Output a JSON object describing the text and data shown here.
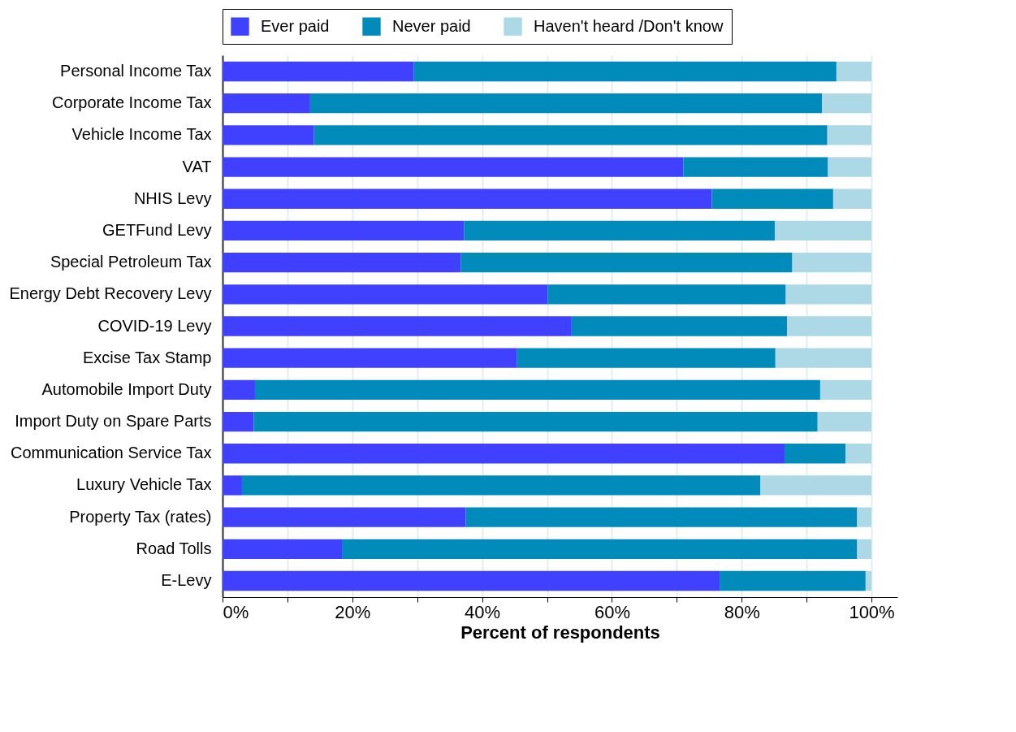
{
  "chart_data": {
    "type": "bar",
    "orientation": "horizontal",
    "stacked": true,
    "xlabel": "Percent of respondents",
    "categories": [
      "Personal Income Tax",
      "Corporate Income Tax",
      "Vehicle Income Tax",
      "VAT",
      "NHIS Levy",
      "GETFund Levy",
      "Special Petroleum Tax",
      "Energy Debt Recovery Levy",
      "COVID-19 Levy",
      "Excise Tax Stamp",
      "Automobile Import Duty",
      "Import Duty on Spare Parts",
      "Communication Service Tax",
      "Luxury Vehicle Tax",
      "Property Tax (rates)",
      "Road Tolls",
      "E-Levy"
    ],
    "series": [
      {
        "name": "Ever paid",
        "color": "#4040ff",
        "values": [
          29.5,
          13.5,
          14.1,
          71.0,
          75.4,
          37.2,
          36.7,
          50.1,
          53.8,
          45.4,
          5.0,
          4.8,
          86.6,
          3.0,
          37.5,
          18.4,
          76.6
        ]
      },
      {
        "name": "Never paid",
        "color": "#008bbb",
        "values": [
          65.1,
          78.9,
          79.1,
          22.3,
          18.7,
          47.9,
          51.1,
          36.7,
          33.2,
          39.8,
          87.1,
          86.9,
          9.4,
          79.9,
          60.3,
          79.4,
          22.5
        ]
      },
      {
        "name": "Haven't heard /Don't know",
        "color": "#add8e6",
        "values": [
          5.4,
          7.6,
          6.8,
          6.7,
          5.9,
          14.9,
          12.2,
          13.2,
          13.0,
          14.8,
          7.9,
          8.3,
          4.0,
          17.1,
          2.2,
          2.2,
          0.9
        ]
      }
    ],
    "xlim": [
      0,
      104
    ],
    "xticks": [
      {
        "value": 0,
        "label": "0%"
      },
      {
        "value": 10,
        "label": null
      },
      {
        "value": 20,
        "label": "20%"
      },
      {
        "value": 30,
        "label": null
      },
      {
        "value": 40,
        "label": "40%"
      },
      {
        "value": 50,
        "label": null
      },
      {
        "value": 60,
        "label": "60%"
      },
      {
        "value": 70,
        "label": null
      },
      {
        "value": 80,
        "label": "80%"
      },
      {
        "value": 90,
        "label": null
      },
      {
        "value": 100,
        "label": "100%"
      }
    ],
    "grid": "x",
    "legend": "top"
  }
}
